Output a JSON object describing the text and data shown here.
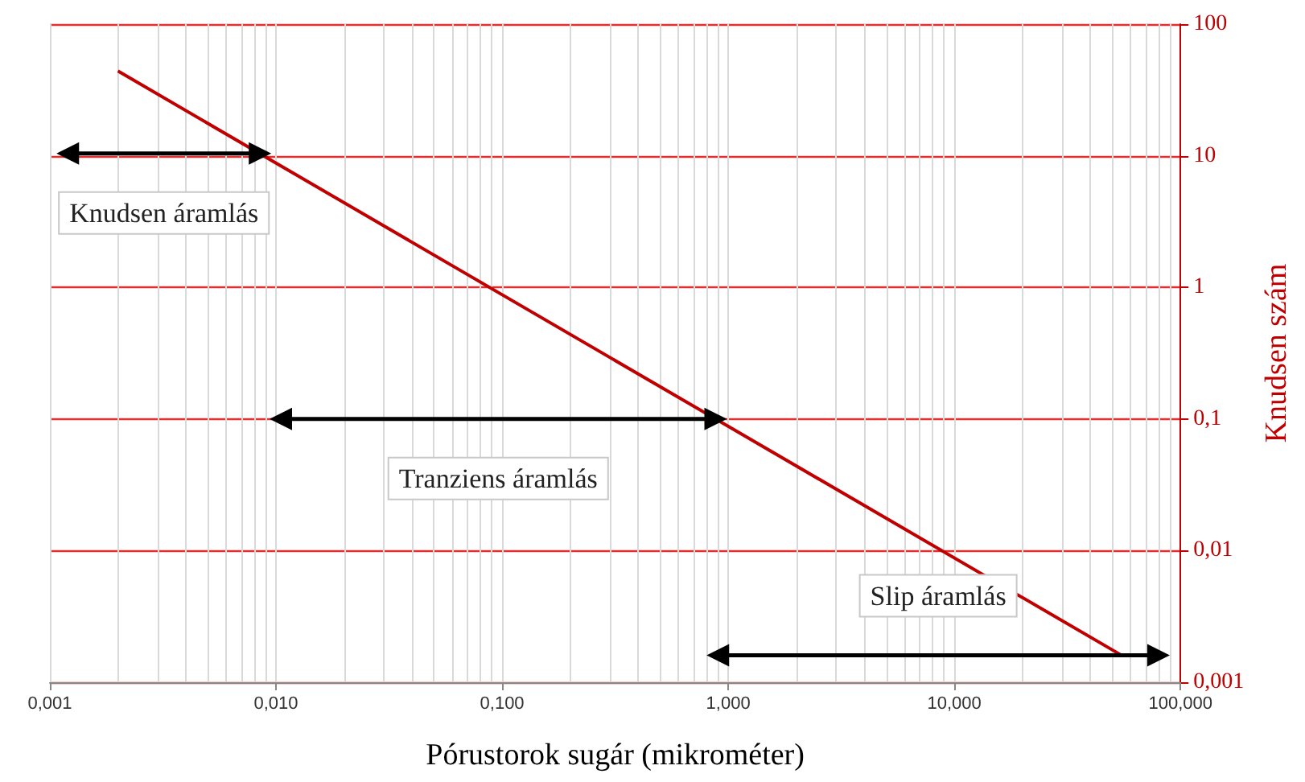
{
  "chart_data": {
    "type": "line",
    "xlabel": "Pórustorok sugár (mikrométer)",
    "ylabel": "Knudsen szám",
    "log": "xy",
    "grid": true,
    "marker": "none",
    "line_style": "solid",
    "xlim": [
      0.001,
      100
    ],
    "ylim": [
      0.001,
      100
    ],
    "xticks": [
      {
        "value": 0.001,
        "label": "0,001"
      },
      {
        "value": 0.01,
        "label": "0,010"
      },
      {
        "value": 0.1,
        "label": "0,100"
      },
      {
        "value": 1,
        "label": "1,000"
      },
      {
        "value": 10,
        "label": "10,000"
      },
      {
        "value": 100,
        "label": "100,000"
      }
    ],
    "yticks": [
      {
        "value": 0.001,
        "label": "0,001"
      },
      {
        "value": 0.01,
        "label": "0,01"
      },
      {
        "value": 0.1,
        "label": "0,1"
      },
      {
        "value": 1,
        "label": "1"
      },
      {
        "value": 10,
        "label": "10"
      },
      {
        "value": 100,
        "label": "100"
      }
    ],
    "series": [
      {
        "color": "#c00000",
        "x": [
          0.002,
          55
        ],
        "values": [
          44,
          0.0016
        ]
      },
      {
        "color": "#000000",
        "marker": "triangle",
        "x": [
          0.0012,
          0.0085
        ],
        "values": [
          10.4,
          10.4
        ]
      },
      {
        "color": "#000000",
        "marker": "triangle",
        "x": [
          0.0105,
          0.88
        ],
        "values": [
          0.1,
          0.1
        ]
      },
      {
        "color": "#000000",
        "marker": "triangle",
        "x": [
          0.9,
          80
        ],
        "values": [
          0.0016,
          0.0016
        ]
      }
    ],
    "annotations": [
      "Knudsen áramlás",
      "Tranziens áramlás",
      "Slip áramlás"
    ]
  }
}
